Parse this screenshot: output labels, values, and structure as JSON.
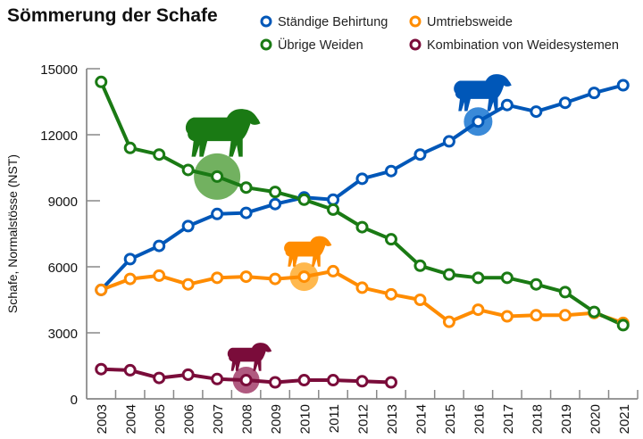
{
  "chart_data": {
    "type": "line",
    "title": "Sömmerung der Schafe",
    "xlabel": "",
    "ylabel": "Schafe, Normalstösse (NST)",
    "ylim": [
      0,
      15000
    ],
    "yticks": [
      0,
      3000,
      6000,
      9000,
      12000,
      15000
    ],
    "ytick_labels": [
      "0",
      "3000",
      "6000",
      "9000",
      "12000",
      "15000"
    ],
    "grid": false,
    "legend_position": "top-right",
    "x": [
      "2003",
      "2004",
      "2005",
      "2006",
      "2007",
      "2008",
      "2009",
      "2010",
      "2011",
      "2012",
      "2013",
      "2014",
      "2015",
      "2016",
      "2017",
      "2018",
      "2019",
      "2020",
      "2021"
    ],
    "series": [
      {
        "name": "Ständige Behirtung",
        "color": "#0057b8",
        "highlight_color": "#3a8ad8",
        "highlight_year": "2016",
        "values": [
          4950,
          6350,
          6950,
          7850,
          8400,
          8450,
          8850,
          9150,
          9050,
          10000,
          10350,
          11100,
          11700,
          12600,
          13350,
          13050,
          13450,
          13900,
          14250
        ]
      },
      {
        "name": "Umtriebsweide",
        "color": "#ff8c00",
        "highlight_color": "#ffb84d",
        "highlight_year": "2010",
        "values": [
          4950,
          5450,
          5600,
          5200,
          5500,
          5550,
          5450,
          5550,
          5800,
          5050,
          4750,
          4500,
          3500,
          4050,
          3750,
          3800,
          3800,
          3900,
          3450
        ]
      },
      {
        "name": "Übrige Weiden",
        "color": "#1a7a14",
        "highlight_color": "#72b160",
        "highlight_year": "2007",
        "values": [
          14400,
          11400,
          11100,
          10400,
          10100,
          9600,
          9400,
          9050,
          8600,
          7800,
          7250,
          6050,
          5650,
          5500,
          5500,
          5200,
          4850,
          3950,
          3350
        ]
      },
      {
        "name": "Kombination von Weidesystemen",
        "color": "#7a0c3a",
        "highlight_color": "#b05a80",
        "highlight_year": "2008",
        "values": [
          1350,
          1300,
          950,
          1100,
          900,
          850,
          750,
          850,
          850,
          800,
          750,
          null,
          null,
          null,
          null,
          null,
          null,
          null,
          null
        ]
      }
    ]
  },
  "legend": {
    "items": [
      {
        "label": "Ständige Behirtung",
        "color": "#0057b8"
      },
      {
        "label": "Umtriebsweide",
        "color": "#ff8c00"
      },
      {
        "label": "Übrige Weiden",
        "color": "#1a7a14"
      },
      {
        "label": "Kombination von Weidesystemen",
        "color": "#7a0c3a"
      }
    ]
  },
  "icons": {
    "sheep_icon": "sheep-silhouette"
  }
}
